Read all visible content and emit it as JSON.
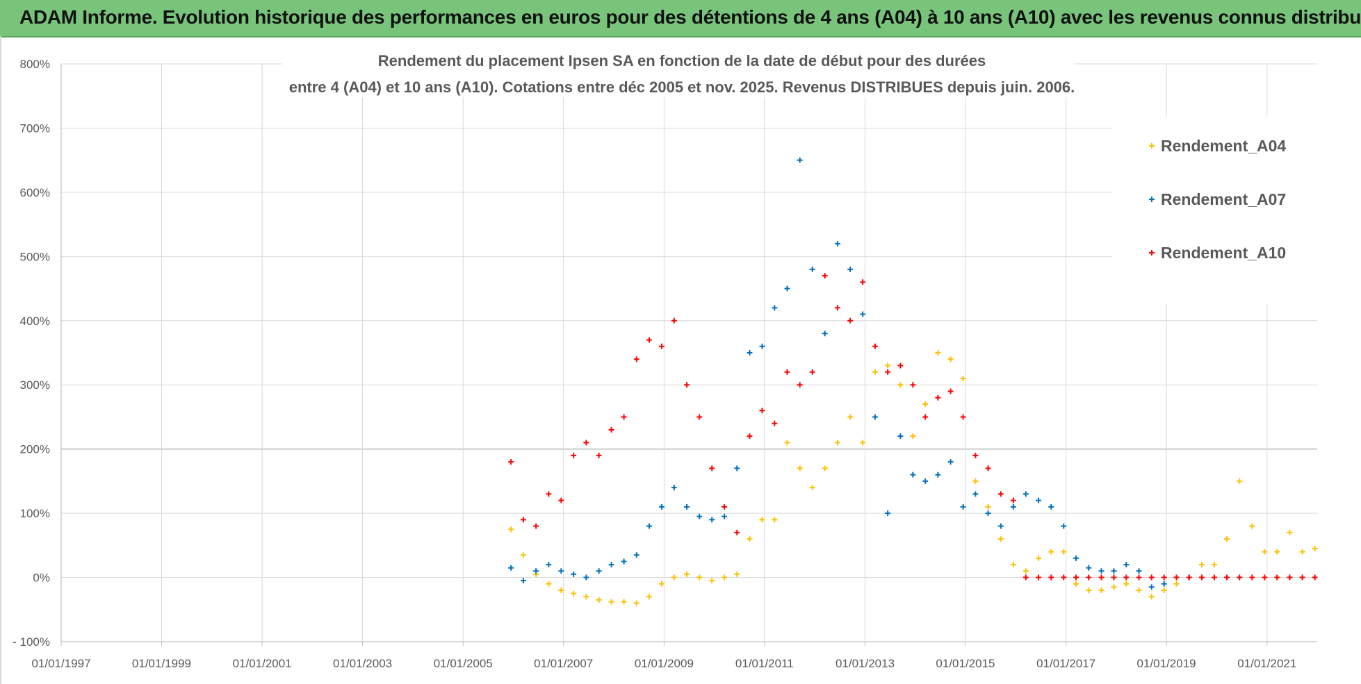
{
  "header": {
    "title": "ADAM Informe. Evolution historique des performances en euros pour des détentions de 4 ans (A04) à 10 ans (A10) avec les revenus connus distribués"
  },
  "colors": {
    "banner": "#79c47b",
    "grid": "#d9d9d9",
    "axis_text": "#595959",
    "title_text": "#595959",
    "A04": "#ffc000",
    "A07": "#0070c0",
    "A10": "#ff0000"
  },
  "chart_data": {
    "type": "scatter",
    "title": "Rendement du placement Ipsen SA en fonction de la date de début pour des durées",
    "subtitle": "entre 4 (A04) et 10 ans (A10).  Cotations entre déc 2005 et nov. 2025.  Revenus DISTRIBUES depuis juin. 2006.",
    "xlabel": "",
    "ylabel": "",
    "x_ticks": [
      "01/01/1997",
      "01/01/1999",
      "01/01/2001",
      "01/01/2003",
      "01/01/2005",
      "01/01/2007",
      "01/01/2009",
      "01/01/2011",
      "01/01/2013",
      "01/01/2015",
      "01/01/2017",
      "01/01/2019",
      "01/01/2021"
    ],
    "xlim": [
      "1997-01-01",
      "2022-01-01"
    ],
    "y_ticks": [
      "800%",
      "700%",
      "600%",
      "500%",
      "400%",
      "300%",
      "200%",
      "100%",
      "0%",
      "- 100%"
    ],
    "ylim": [
      -100,
      800
    ],
    "grid": true,
    "legend_position": "top-right",
    "marker": "+",
    "series": [
      {
        "name": "Rendement_A04",
        "color": "#ffc000",
        "points": [
          [
            "2005-12",
            75
          ],
          [
            "2006-03",
            35
          ],
          [
            "2006-06",
            5
          ],
          [
            "2006-09",
            -10
          ],
          [
            "2006-12",
            -20
          ],
          [
            "2007-03",
            -25
          ],
          [
            "2007-06",
            -30
          ],
          [
            "2007-09",
            -35
          ],
          [
            "2007-12",
            -38
          ],
          [
            "2008-03",
            -38
          ],
          [
            "2008-06",
            -40
          ],
          [
            "2008-09",
            -30
          ],
          [
            "2008-12",
            -10
          ],
          [
            "2009-03",
            0
          ],
          [
            "2009-06",
            5
          ],
          [
            "2009-09",
            0
          ],
          [
            "2009-12",
            -5
          ],
          [
            "2010-03",
            0
          ],
          [
            "2010-06",
            5
          ],
          [
            "2010-09",
            60
          ],
          [
            "2010-12",
            90
          ],
          [
            "2011-03",
            90
          ],
          [
            "2011-06",
            210
          ],
          [
            "2011-09",
            170
          ],
          [
            "2011-12",
            140
          ],
          [
            "2012-03",
            170
          ],
          [
            "2012-06",
            210
          ],
          [
            "2012-09",
            250
          ],
          [
            "2012-12",
            210
          ],
          [
            "2013-03",
            320
          ],
          [
            "2013-06",
            330
          ],
          [
            "2013-09",
            300
          ],
          [
            "2013-12",
            220
          ],
          [
            "2014-03",
            270
          ],
          [
            "2014-06",
            350
          ],
          [
            "2014-09",
            340
          ],
          [
            "2014-12",
            310
          ],
          [
            "2015-03",
            150
          ],
          [
            "2015-06",
            110
          ],
          [
            "2015-09",
            60
          ],
          [
            "2015-12",
            20
          ],
          [
            "2016-03",
            10
          ],
          [
            "2016-06",
            30
          ],
          [
            "2016-09",
            40
          ],
          [
            "2016-12",
            40
          ],
          [
            "2017-03",
            -10
          ],
          [
            "2017-06",
            -20
          ],
          [
            "2017-09",
            -20
          ],
          [
            "2017-12",
            -15
          ],
          [
            "2018-03",
            -10
          ],
          [
            "2018-06",
            -20
          ],
          [
            "2018-09",
            -30
          ],
          [
            "2018-12",
            -20
          ],
          [
            "2019-03",
            -10
          ],
          [
            "2019-06",
            0
          ],
          [
            "2019-09",
            20
          ],
          [
            "2019-12",
            20
          ],
          [
            "2020-03",
            60
          ],
          [
            "2020-06",
            150
          ],
          [
            "2020-09",
            80
          ],
          [
            "2020-12",
            40
          ],
          [
            "2021-03",
            40
          ],
          [
            "2021-06",
            70
          ],
          [
            "2021-09",
            40
          ],
          [
            "2021-12",
            45
          ]
        ]
      },
      {
        "name": "Rendement_A07",
        "color": "#0070c0",
        "points": [
          [
            "2005-12",
            15
          ],
          [
            "2006-03",
            -5
          ],
          [
            "2006-06",
            10
          ],
          [
            "2006-09",
            20
          ],
          [
            "2006-12",
            10
          ],
          [
            "2007-03",
            5
          ],
          [
            "2007-06",
            0
          ],
          [
            "2007-09",
            10
          ],
          [
            "2007-12",
            20
          ],
          [
            "2008-03",
            25
          ],
          [
            "2008-06",
            35
          ],
          [
            "2008-09",
            80
          ],
          [
            "2008-12",
            110
          ],
          [
            "2009-03",
            140
          ],
          [
            "2009-06",
            110
          ],
          [
            "2009-09",
            95
          ],
          [
            "2009-12",
            90
          ],
          [
            "2010-03",
            95
          ],
          [
            "2010-06",
            170
          ],
          [
            "2010-09",
            350
          ],
          [
            "2010-12",
            360
          ],
          [
            "2011-03",
            420
          ],
          [
            "2011-06",
            450
          ],
          [
            "2011-09",
            650
          ],
          [
            "2011-12",
            480
          ],
          [
            "2012-03",
            380
          ],
          [
            "2012-06",
            520
          ],
          [
            "2012-09",
            480
          ],
          [
            "2012-12",
            410
          ],
          [
            "2013-03",
            250
          ],
          [
            "2013-06",
            100
          ],
          [
            "2013-09",
            220
          ],
          [
            "2013-12",
            160
          ],
          [
            "2014-03",
            150
          ],
          [
            "2014-06",
            160
          ],
          [
            "2014-09",
            180
          ],
          [
            "2014-12",
            110
          ],
          [
            "2015-03",
            130
          ],
          [
            "2015-06",
            100
          ],
          [
            "2015-09",
            80
          ],
          [
            "2015-12",
            110
          ],
          [
            "2016-03",
            130
          ],
          [
            "2016-06",
            120
          ],
          [
            "2016-09",
            110
          ],
          [
            "2016-12",
            80
          ],
          [
            "2017-03",
            30
          ],
          [
            "2017-06",
            15
          ],
          [
            "2017-09",
            10
          ],
          [
            "2017-12",
            10
          ],
          [
            "2018-03",
            20
          ],
          [
            "2018-06",
            10
          ],
          [
            "2018-09",
            -15
          ],
          [
            "2018-12",
            -10
          ],
          [
            "2019-03",
            0
          ],
          [
            "2019-06",
            0
          ]
        ]
      },
      {
        "name": "Rendement_A10",
        "color": "#ff0000",
        "points": [
          [
            "2005-12",
            180
          ],
          [
            "2006-03",
            90
          ],
          [
            "2006-06",
            80
          ],
          [
            "2006-09",
            130
          ],
          [
            "2006-12",
            120
          ],
          [
            "2007-03",
            190
          ],
          [
            "2007-06",
            210
          ],
          [
            "2007-09",
            190
          ],
          [
            "2007-12",
            230
          ],
          [
            "2008-03",
            250
          ],
          [
            "2008-06",
            340
          ],
          [
            "2008-09",
            370
          ],
          [
            "2008-12",
            360
          ],
          [
            "2009-03",
            400
          ],
          [
            "2009-06",
            300
          ],
          [
            "2009-09",
            250
          ],
          [
            "2009-12",
            170
          ],
          [
            "2010-03",
            110
          ],
          [
            "2010-06",
            70
          ],
          [
            "2010-09",
            220
          ],
          [
            "2010-12",
            260
          ],
          [
            "2011-03",
            240
          ],
          [
            "2011-06",
            320
          ],
          [
            "2011-09",
            300
          ],
          [
            "2011-12",
            320
          ],
          [
            "2012-03",
            470
          ],
          [
            "2012-06",
            420
          ],
          [
            "2012-09",
            400
          ],
          [
            "2012-12",
            460
          ],
          [
            "2013-03",
            360
          ],
          [
            "2013-06",
            320
          ],
          [
            "2013-09",
            330
          ],
          [
            "2013-12",
            300
          ],
          [
            "2014-03",
            250
          ],
          [
            "2014-06",
            280
          ],
          [
            "2014-09",
            290
          ],
          [
            "2014-12",
            250
          ],
          [
            "2015-03",
            190
          ],
          [
            "2015-06",
            170
          ],
          [
            "2015-09",
            130
          ],
          [
            "2015-12",
            120
          ],
          [
            "2016-03",
            0
          ],
          [
            "2016-06",
            0
          ],
          [
            "2016-09",
            0
          ],
          [
            "2016-12",
            0
          ],
          [
            "2017-03",
            0
          ],
          [
            "2017-06",
            0
          ],
          [
            "2017-09",
            0
          ],
          [
            "2017-12",
            0
          ],
          [
            "2018-03",
            0
          ],
          [
            "2018-06",
            0
          ],
          [
            "2018-09",
            0
          ],
          [
            "2018-12",
            0
          ],
          [
            "2019-03",
            0
          ],
          [
            "2019-06",
            0
          ],
          [
            "2019-09",
            0
          ],
          [
            "2019-12",
            0
          ],
          [
            "2020-03",
            0
          ],
          [
            "2020-06",
            0
          ],
          [
            "2020-09",
            0
          ],
          [
            "2020-12",
            0
          ],
          [
            "2021-03",
            0
          ],
          [
            "2021-06",
            0
          ],
          [
            "2021-09",
            0
          ],
          [
            "2021-12",
            0
          ]
        ]
      }
    ]
  }
}
